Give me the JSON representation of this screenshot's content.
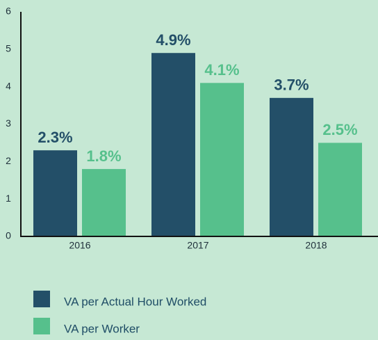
{
  "chart_data": {
    "type": "bar",
    "categories": [
      "2016",
      "2017",
      "2018"
    ],
    "series": [
      {
        "name": "VA per Actual Hour Worked",
        "color": "#234f68",
        "values": [
          2.3,
          4.9,
          3.7
        ],
        "value_labels": [
          "2.3%",
          "4.9%",
          "3.7%"
        ]
      },
      {
        "name": "VA per Worker",
        "color": "#56c08c",
        "values": [
          1.8,
          4.1,
          2.5
        ],
        "value_labels": [
          "1.8%",
          "4.1%",
          "2.5%"
        ]
      }
    ],
    "ylim": [
      0,
      6
    ],
    "yticks": [
      0,
      1,
      2,
      3,
      4,
      5,
      6
    ],
    "grid": false,
    "legend": "bottom"
  }
}
